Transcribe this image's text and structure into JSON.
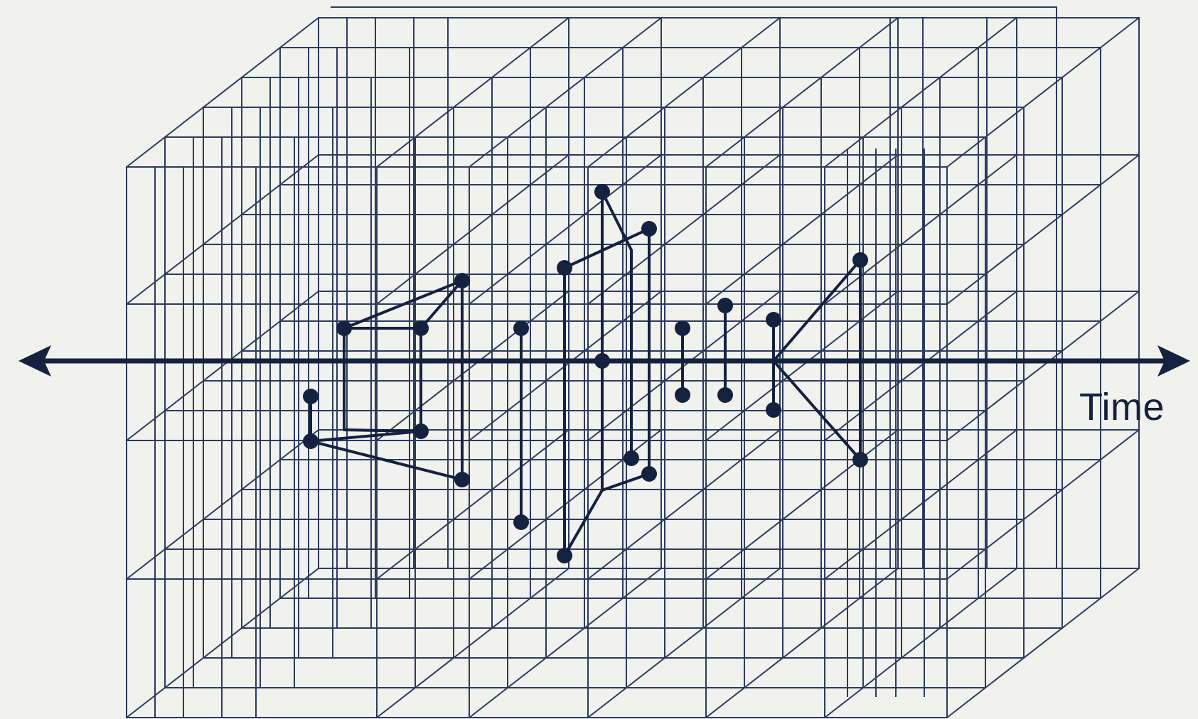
{
  "diagram": {
    "axis_label": "Time",
    "colors": {
      "background": "#f1f1ed",
      "grid": "#2c3b5e",
      "ink": "#14223f"
    },
    "icons": {
      "axis_left_end": "arrowhead-left-icon",
      "axis_right_end": "arrowhead-right-icon"
    }
  }
}
